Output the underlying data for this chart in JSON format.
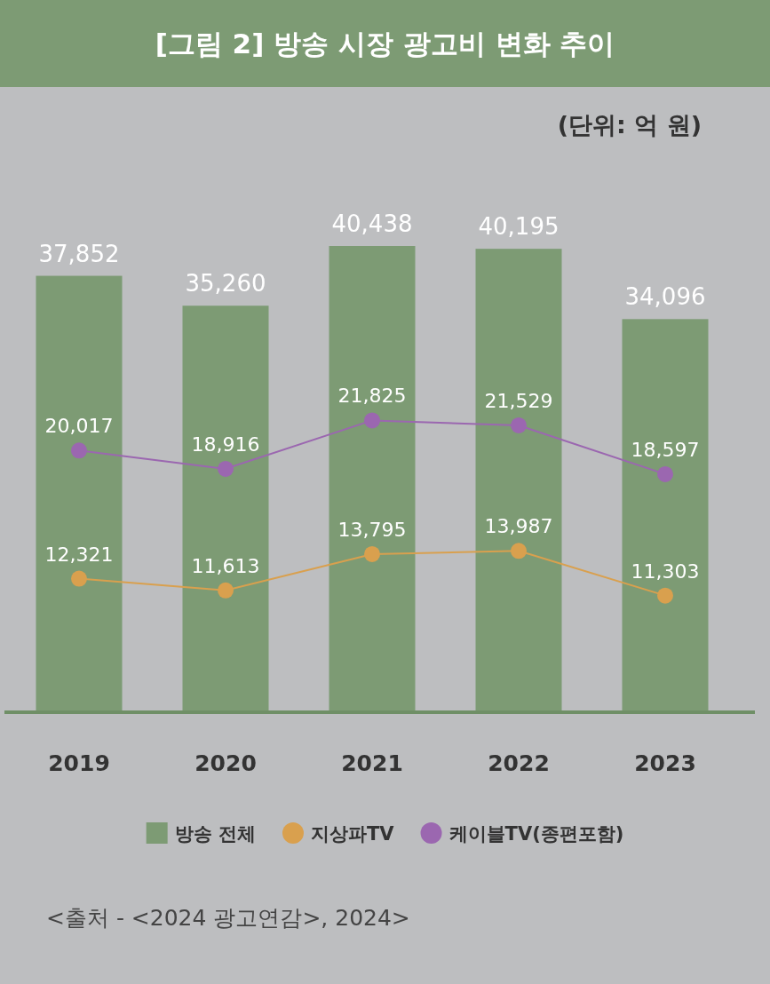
{
  "chart_data": {
    "type": "bar",
    "title": "[그림 2] 방송 시장 광고비 변화 추이",
    "subtitle": "(단위: 억 원)",
    "categories": [
      "2019",
      "2020",
      "2021",
      "2022",
      "2023"
    ],
    "series": [
      {
        "name": "방송 전체",
        "color": "#7d9b74",
        "values": [
          37852,
          35260,
          40438,
          40195,
          34096
        ],
        "value_labels": [
          "37,852",
          "35,260",
          "40,438",
          "40,195",
          "34,096"
        ]
      },
      {
        "name": "지상파TV",
        "type": "line",
        "axis": "y2",
        "color": "#d9a04e",
        "values": [
          12321,
          11613,
          13795,
          13987,
          11303
        ],
        "value_labels": [
          "12,321",
          "11,613",
          "13,795",
          "13,987",
          "11,303"
        ]
      },
      {
        "name": "케이블TV(종편포함)",
        "type": "line",
        "axis": "y2",
        "color": "#9b67b0",
        "values": [
          20017,
          18916,
          21825,
          21529,
          18597
        ],
        "value_labels": [
          "20,017",
          "18,916",
          "21,825",
          "21,529",
          "18,597"
        ]
      }
    ],
    "legend": "bottom",
    "marker": "circle",
    "annotations": [
      "<출처 - <2024 광고연감>, 2024>"
    ]
  }
}
